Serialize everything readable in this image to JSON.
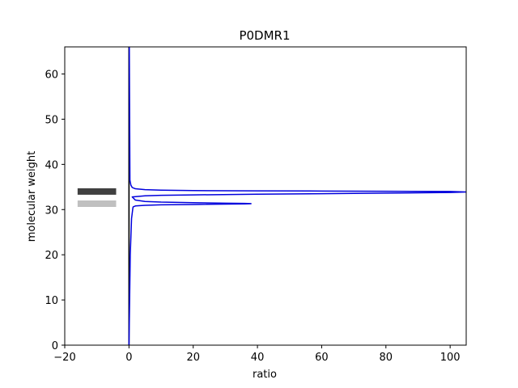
{
  "chart_data": {
    "type": "line",
    "title": "P0DMR1",
    "xlabel": "ratio",
    "ylabel": "molecular weight",
    "xlim": [
      -20,
      105
    ],
    "ylim": [
      0,
      66
    ],
    "xticks": [
      -20,
      0,
      20,
      40,
      60,
      80,
      100
    ],
    "xtick_labels": [
      "−20",
      "0",
      "20",
      "40",
      "60",
      "80",
      "100"
    ],
    "yticks": [
      0,
      10,
      20,
      30,
      40,
      50,
      60
    ],
    "ytick_labels": [
      "0",
      "10",
      "20",
      "30",
      "40",
      "50",
      "60"
    ],
    "grid": false,
    "vertical_line": {
      "x": 0,
      "color": "#000000"
    },
    "bands": [
      {
        "x_range": [
          -16,
          -4
        ],
        "y": 34.0,
        "color": "#404040"
      },
      {
        "x_range": [
          -16,
          -4
        ],
        "y": 31.3,
        "color": "#c0c0c0"
      }
    ],
    "series": [
      {
        "color": "#0000dd",
        "peaks": [
          {
            "center": 31.3,
            "height": 38
          },
          {
            "center": 33.9,
            "height": 105
          }
        ],
        "x": [
          0.0,
          0.4,
          0.8,
          1.2,
          1.3,
          2,
          5,
          10,
          20,
          30,
          36,
          38,
          38,
          36,
          30,
          20,
          10,
          5,
          2,
          1.0,
          5,
          10,
          20,
          40,
          60,
          80,
          100,
          105,
          100,
          80,
          60,
          40,
          20,
          10,
          5,
          2,
          1.0,
          0.6,
          0.3,
          0.1
        ],
        "y": [
          0.0,
          20.0,
          28.0,
          30.3,
          30.6,
          30.8,
          30.95,
          31.05,
          31.13,
          31.2,
          31.25,
          31.3,
          31.32,
          31.36,
          31.42,
          31.52,
          31.65,
          31.8,
          32.1,
          32.8,
          33.05,
          33.15,
          33.25,
          33.4,
          33.52,
          33.65,
          33.78,
          33.9,
          34.0,
          34.05,
          34.1,
          34.15,
          34.2,
          34.3,
          34.4,
          34.6,
          34.9,
          35.4,
          36.5,
          66.0
        ]
      }
    ]
  }
}
